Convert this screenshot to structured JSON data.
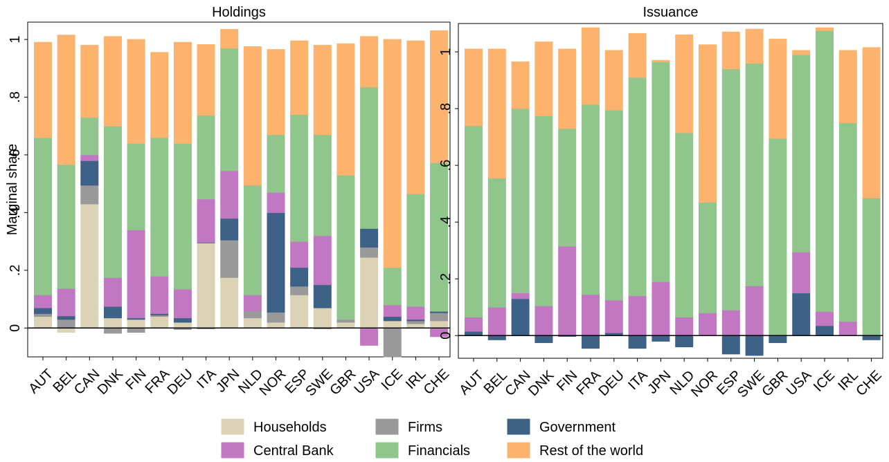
{
  "chart_data": [
    {
      "type": "stacked_bar",
      "title": "Holdings",
      "y_label": "Marginal share",
      "categories": [
        "AUT",
        "BEL",
        "CAN",
        "DNK",
        "FIN",
        "FRA",
        "DEU",
        "ITA",
        "JPN",
        "NLD",
        "NOR",
        "ESP",
        "SWE",
        "GBR",
        "USA",
        "ICE",
        "IRL",
        "CHE"
      ],
      "ylim": [
        -0.1,
        1.06
      ],
      "yticks": [
        0,
        {
          "value": 0.2,
          "label": ".2"
        },
        {
          "value": 0.4,
          "label": ".4"
        },
        {
          "value": 0.6,
          "label": ".6"
        },
        {
          "value": 0.8,
          "label": ".8"
        },
        1
      ],
      "series": [
        {
          "name": "Households",
          "color": "#dcd3b6",
          "values": [
            0.04,
            -0.015,
            0.43,
            0.035,
            0.03,
            0.04,
            0.02,
            0.295,
            0.175,
            0.035,
            0.02,
            0.115,
            0.07,
            0.02,
            0.245,
            0.025,
            0.015,
            0.025
          ]
        },
        {
          "name": "Firms",
          "color": "#999999",
          "values": [
            0.01,
            0.03,
            0.065,
            -0.018,
            -0.015,
            0.005,
            -0.005,
            -0.003,
            0.13,
            0.025,
            0.035,
            0.03,
            -0.003,
            0.01,
            0.035,
            -0.1,
            0.01,
            0.028
          ]
        },
        {
          "name": "Government",
          "color": "#3d6187",
          "values": [
            0.02,
            0.012,
            0.085,
            0.04,
            0.005,
            0.005,
            0.015,
            0.002,
            0.075,
            0,
            0.345,
            0.065,
            0.08,
            0,
            0.065,
            0.015,
            0.005,
            0.005
          ]
        },
        {
          "name": "Central Bank",
          "color": "#c277c2",
          "values": [
            0.045,
            0.095,
            0.02,
            0.1,
            0.305,
            0.13,
            0.1,
            0.15,
            0.165,
            0.055,
            0.07,
            0.09,
            0.17,
            0,
            -0.06,
            0.04,
            0.045,
            -0.03
          ]
        },
        {
          "name": "Financials",
          "color": "#90c58b",
          "values": [
            0.545,
            0.43,
            0.13,
            0.525,
            0.3,
            0.48,
            0.505,
            0.29,
            0.425,
            0.38,
            0.2,
            0.44,
            0.35,
            0.5,
            0.49,
            0.13,
            0.39,
            0.515
          ]
        },
        {
          "name": "Rest of the world",
          "color": "#fdb36d",
          "values": [
            0.33,
            0.448,
            0.25,
            0.31,
            0.36,
            0.295,
            0.35,
            0.245,
            0.065,
            0.48,
            0.295,
            0.255,
            0.31,
            0.455,
            0.175,
            0.79,
            0.53,
            0.457
          ]
        }
      ]
    },
    {
      "type": "stacked_bar",
      "title": "Issuance",
      "categories": [
        "AUT",
        "BEL",
        "CAN",
        "DNK",
        "FIN",
        "FRA",
        "DEU",
        "ITA",
        "JPN",
        "NLD",
        "NOR",
        "ESP",
        "SWE",
        "GBR",
        "USA",
        "ICE",
        "IRL",
        "CHE"
      ],
      "ylim": [
        -0.08,
        1.1
      ],
      "yticks": [
        0,
        {
          "value": 0.2,
          "label": ".2"
        },
        {
          "value": 0.4,
          "label": ".4"
        },
        {
          "value": 0.6,
          "label": ".6"
        },
        {
          "value": 0.8,
          "label": ".8"
        },
        1
      ],
      "series": [
        {
          "name": "Government",
          "color": "#3d6187",
          "values": [
            0.015,
            -0.015,
            0.13,
            -0.025,
            -0.003,
            -0.045,
            0.01,
            -0.045,
            -0.02,
            -0.04,
            0,
            -0.065,
            -0.07,
            -0.025,
            0.15,
            0.035,
            0,
            -0.015
          ]
        },
        {
          "name": "Central Bank",
          "color": "#c277c2",
          "values": [
            0.05,
            0.1,
            0.02,
            0.105,
            0.315,
            0.145,
            0.115,
            0.14,
            0.19,
            0.065,
            0.08,
            0.09,
            0.175,
            0,
            0.145,
            0.05,
            0.05,
            0
          ]
        },
        {
          "name": "Financials",
          "color": "#90c58b",
          "values": [
            0.675,
            0.455,
            0.65,
            0.67,
            0.415,
            0.67,
            0.67,
            0.77,
            0.775,
            0.65,
            0.39,
            0.85,
            0.785,
            0.695,
            0.695,
            0.99,
            0.7,
            0.485
          ]
        },
        {
          "name": "Rest of the world",
          "color": "#fdb36d",
          "values": [
            0.27,
            0.455,
            0.165,
            0.26,
            0.28,
            0.27,
            0.21,
            0.155,
            0.005,
            0.345,
            0.555,
            0.13,
            0.12,
            0.35,
            0.015,
            0.01,
            0.255,
            0.53
          ]
        }
      ]
    }
  ]
}
